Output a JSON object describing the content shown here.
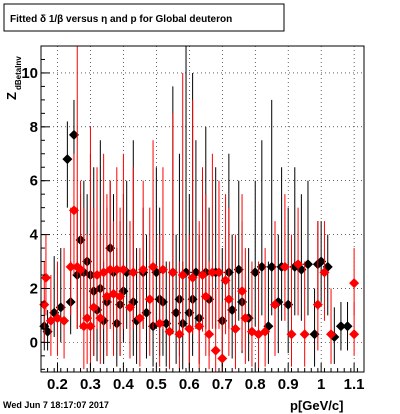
{
  "page": {
    "timestamp": "Wed Jun  7 18:17:07 2017"
  },
  "chart_data": {
    "type": "scatter",
    "title": "Fitted δ 1/β versus η and p for Global deuteron",
    "xlabel": "p[GeV/c]",
    "ylabel": "Z",
    "ylabel_sub": "dBetaInv",
    "xlim": [
      0.15,
      1.13
    ],
    "ylim": [
      -1.1,
      11.0
    ],
    "xticks": [
      {
        "value": 0.2,
        "label": "0.2"
      },
      {
        "value": 0.3,
        "label": "0.3"
      },
      {
        "value": 0.4,
        "label": "0.4"
      },
      {
        "value": 0.5,
        "label": "0.5"
      },
      {
        "value": 0.6,
        "label": "0.6"
      },
      {
        "value": 0.7,
        "label": "0.7"
      },
      {
        "value": 0.8,
        "label": "0.8"
      },
      {
        "value": 0.9,
        "label": "0.9"
      },
      {
        "value": 1.0,
        "label": "1"
      },
      {
        "value": 1.1,
        "label": "1.1"
      }
    ],
    "yticks": [
      {
        "value": 0,
        "label": "0"
      },
      {
        "value": 2,
        "label": "2"
      },
      {
        "value": 4,
        "label": "4"
      },
      {
        "value": 6,
        "label": "6"
      },
      {
        "value": 8,
        "label": "8"
      },
      {
        "value": 10,
        "label": "10"
      }
    ],
    "grid": true,
    "colors": {
      "black_series": "#000000",
      "red_series": "#ff0000"
    },
    "series": [
      {
        "color": "#000000",
        "marker": "diamond",
        "points": [
          {
            "x": 0.16,
            "y": 0.6,
            "lo": -0.3,
            "hi": 1.5
          },
          {
            "x": 0.17,
            "y": 0.4,
            "lo": -0.3,
            "hi": 1.2
          },
          {
            "x": 0.19,
            "y": 1.1,
            "lo": 0.2,
            "hi": 3.2
          },
          {
            "x": 0.21,
            "y": 1.3,
            "lo": 0.0,
            "hi": 3.5
          },
          {
            "x": 0.23,
            "y": 6.8,
            "lo": 5.0,
            "hi": 8.2
          },
          {
            "x": 0.24,
            "y": 1.5,
            "lo": 0.3,
            "hi": 3.0
          },
          {
            "x": 0.25,
            "y": 7.7,
            "lo": 6.0,
            "hi": 9.0
          },
          {
            "x": 0.26,
            "y": 2.5,
            "lo": 0.5,
            "hi": 5.0
          },
          {
            "x": 0.27,
            "y": 3.8,
            "lo": 2.0,
            "hi": 5.5
          },
          {
            "x": 0.28,
            "y": 2.6,
            "lo": 0.8,
            "hi": 6.0
          },
          {
            "x": 0.29,
            "y": 3.0,
            "lo": 1.0,
            "hi": 5.5
          },
          {
            "x": 0.3,
            "y": 2.5,
            "lo": 0.5,
            "hi": 7.0
          },
          {
            "x": 0.31,
            "y": 1.9,
            "lo": -0.5,
            "hi": 6.5
          },
          {
            "x": 0.32,
            "y": 1.2,
            "lo": -0.7,
            "hi": 4.5
          },
          {
            "x": 0.33,
            "y": 2.0,
            "lo": 0.0,
            "hi": 7.5
          },
          {
            "x": 0.34,
            "y": 0.8,
            "lo": -0.8,
            "hi": 3.0
          },
          {
            "x": 0.35,
            "y": 1.5,
            "lo": -0.5,
            "hi": 5.0
          },
          {
            "x": 0.36,
            "y": 3.5,
            "lo": 1.5,
            "hi": 6.0
          },
          {
            "x": 0.37,
            "y": 2.6,
            "lo": 0.3,
            "hi": 5.5
          },
          {
            "x": 0.38,
            "y": 0.7,
            "lo": -0.9,
            "hi": 3.5
          },
          {
            "x": 0.39,
            "y": 1.4,
            "lo": -0.5,
            "hi": 4.5
          },
          {
            "x": 0.4,
            "y": 1.9,
            "lo": 0.0,
            "hi": 5.5
          },
          {
            "x": 0.41,
            "y": 2.6,
            "lo": 0.5,
            "hi": 6.0
          },
          {
            "x": 0.43,
            "y": 1.5,
            "lo": -0.5,
            "hi": 7.5
          },
          {
            "x": 0.44,
            "y": 0.8,
            "lo": -0.8,
            "hi": 3.5
          },
          {
            "x": 0.46,
            "y": 2.6,
            "lo": 0.5,
            "hi": 5.0
          },
          {
            "x": 0.47,
            "y": 1.1,
            "lo": -0.6,
            "hi": 4.0
          },
          {
            "x": 0.49,
            "y": 0.6,
            "lo": -0.9,
            "hi": 2.5
          },
          {
            "x": 0.5,
            "y": 2.6,
            "lo": 0.5,
            "hi": 6.5
          },
          {
            "x": 0.51,
            "y": 1.6,
            "lo": -0.5,
            "hi": 5.0
          },
          {
            "x": 0.52,
            "y": 1.5,
            "lo": -0.5,
            "hi": 4.0
          },
          {
            "x": 0.53,
            "y": 0.7,
            "lo": -0.9,
            "hi": 3.0
          },
          {
            "x": 0.55,
            "y": 2.6,
            "lo": 0.3,
            "hi": 9.5
          },
          {
            "x": 0.56,
            "y": 1.1,
            "lo": -0.8,
            "hi": 4.0
          },
          {
            "x": 0.57,
            "y": 1.6,
            "lo": -0.5,
            "hi": 7.0
          },
          {
            "x": 0.58,
            "y": 0.7,
            "lo": -1.0,
            "hi": 3.0
          },
          {
            "x": 0.59,
            "y": 2.6,
            "lo": 0.5,
            "hi": 11.0
          },
          {
            "x": 0.6,
            "y": 1.1,
            "lo": -0.8,
            "hi": 5.5
          },
          {
            "x": 0.61,
            "y": 1.6,
            "lo": -0.5,
            "hi": 10.0
          },
          {
            "x": 0.62,
            "y": 2.6,
            "lo": 0.5,
            "hi": 7.5
          },
          {
            "x": 0.63,
            "y": 0.9,
            "lo": -0.8,
            "hi": 4.0
          },
          {
            "x": 0.65,
            "y": 2.6,
            "lo": 0.5,
            "hi": 8.0
          },
          {
            "x": 0.66,
            "y": 1.6,
            "lo": -0.5,
            "hi": 5.0
          },
          {
            "x": 0.68,
            "y": 2.6,
            "lo": 0.5,
            "hi": 6.5
          },
          {
            "x": 0.7,
            "y": 0.8,
            "lo": -0.9,
            "hi": 3.5
          },
          {
            "x": 0.72,
            "y": 2.6,
            "lo": 0.5,
            "hi": 7.0
          },
          {
            "x": 0.73,
            "y": 1.2,
            "lo": -0.6,
            "hi": 4.0
          },
          {
            "x": 0.75,
            "y": 2.7,
            "lo": 0.8,
            "hi": 6.0
          },
          {
            "x": 0.76,
            "y": 1.5,
            "lo": -0.4,
            "hi": 4.5
          },
          {
            "x": 0.78,
            "y": 0.9,
            "lo": -0.7,
            "hi": 3.5
          },
          {
            "x": 0.8,
            "y": 2.6,
            "lo": 0.6,
            "hi": 6.0
          },
          {
            "x": 0.82,
            "y": 2.8,
            "lo": 1.0,
            "hi": 7.5
          },
          {
            "x": 0.84,
            "y": 0.6,
            "lo": -0.8,
            "hi": 3.0
          },
          {
            "x": 0.85,
            "y": 2.8,
            "lo": 1.0,
            "hi": 9.0
          },
          {
            "x": 0.87,
            "y": 1.5,
            "lo": -0.4,
            "hi": 4.0
          },
          {
            "x": 0.88,
            "y": 2.8,
            "lo": 0.8,
            "hi": 6.5
          },
          {
            "x": 0.9,
            "y": 1.4,
            "lo": -0.4,
            "hi": 5.0
          },
          {
            "x": 0.92,
            "y": 2.8,
            "lo": 1.0,
            "hi": 6.5
          },
          {
            "x": 0.94,
            "y": 2.7,
            "lo": 0.8,
            "hi": 5.5
          },
          {
            "x": 0.96,
            "y": 2.9,
            "lo": 1.0,
            "hi": 6.0
          },
          {
            "x": 0.98,
            "y": 0.3,
            "lo": -0.9,
            "hi": 2.0
          },
          {
            "x": 0.99,
            "y": 2.9,
            "lo": 1.2,
            "hi": 4.5
          },
          {
            "x": 1.0,
            "y": 3.0,
            "lo": 1.5,
            "hi": 4.5
          },
          {
            "x": 1.02,
            "y": 2.8,
            "lo": 1.0,
            "hi": 4.0
          },
          {
            "x": 1.04,
            "y": 0.2,
            "lo": -0.8,
            "hi": 1.3
          },
          {
            "x": 1.06,
            "y": 0.6,
            "lo": -0.3,
            "hi": 1.5
          },
          {
            "x": 1.08,
            "y": 0.6,
            "lo": -0.3,
            "hi": 1.5
          }
        ]
      },
      {
        "color": "#ff0000",
        "marker": "diamond",
        "points": [
          {
            "x": 0.16,
            "y": 1.4,
            "lo": 0.0,
            "hi": 3.0
          },
          {
            "x": 0.165,
            "y": 2.4,
            "lo": 1.0,
            "hi": 4.0
          },
          {
            "x": 0.18,
            "y": 0.8,
            "lo": -0.5,
            "hi": 2.5
          },
          {
            "x": 0.2,
            "y": 0.9,
            "lo": -0.5,
            "hi": 3.0
          },
          {
            "x": 0.22,
            "y": 0.8,
            "lo": -0.6,
            "hi": 3.5
          },
          {
            "x": 0.24,
            "y": 2.8,
            "lo": 1.0,
            "hi": 5.0
          },
          {
            "x": 0.25,
            "y": 4.9,
            "lo": 2.5,
            "hi": 7.0
          },
          {
            "x": 0.26,
            "y": 2.8,
            "lo": 0.5,
            "hi": 11.0
          },
          {
            "x": 0.27,
            "y": 2.7,
            "lo": 0.5,
            "hi": 6.0
          },
          {
            "x": 0.28,
            "y": 0.6,
            "lo": -1.0,
            "hi": 5.0
          },
          {
            "x": 0.29,
            "y": 0.9,
            "lo": -0.8,
            "hi": 4.0
          },
          {
            "x": 0.3,
            "y": 0.6,
            "lo": -1.0,
            "hi": 8.0
          },
          {
            "x": 0.31,
            "y": 1.3,
            "lo": -0.5,
            "hi": 5.0
          },
          {
            "x": 0.32,
            "y": 2.5,
            "lo": 0.5,
            "hi": 6.5
          },
          {
            "x": 0.33,
            "y": 0.9,
            "lo": -0.8,
            "hi": 4.0
          },
          {
            "x": 0.34,
            "y": 2.6,
            "lo": 0.5,
            "hi": 7.0
          },
          {
            "x": 0.35,
            "y": 1.7,
            "lo": -0.5,
            "hi": 5.5
          },
          {
            "x": 0.36,
            "y": 2.7,
            "lo": 0.5,
            "hi": 6.0
          },
          {
            "x": 0.37,
            "y": 1.8,
            "lo": -0.5,
            "hi": 4.5
          },
          {
            "x": 0.38,
            "y": 2.7,
            "lo": 0.5,
            "hi": 6.5
          },
          {
            "x": 0.39,
            "y": 1.7,
            "lo": -0.5,
            "hi": 5.0
          },
          {
            "x": 0.4,
            "y": 2.7,
            "lo": 0.5,
            "hi": 7.0
          },
          {
            "x": 0.42,
            "y": 1.3,
            "lo": -0.6,
            "hi": 4.5
          },
          {
            "x": 0.43,
            "y": 2.6,
            "lo": 0.5,
            "hi": 6.5
          },
          {
            "x": 0.45,
            "y": 0.9,
            "lo": -0.9,
            "hi": 3.5
          },
          {
            "x": 0.46,
            "y": 2.7,
            "lo": 0.5,
            "hi": 6.0
          },
          {
            "x": 0.48,
            "y": 1.6,
            "lo": -0.5,
            "hi": 5.0
          },
          {
            "x": 0.49,
            "y": 2.8,
            "lo": 0.5,
            "hi": 7.5
          },
          {
            "x": 0.51,
            "y": 0.7,
            "lo": -0.9,
            "hi": 4.0
          },
          {
            "x": 0.52,
            "y": 2.7,
            "lo": 0.5,
            "hi": 6.5
          },
          {
            "x": 0.54,
            "y": 0.4,
            "lo": -1.0,
            "hi": 3.0
          },
          {
            "x": 0.55,
            "y": 2.6,
            "lo": 0.5,
            "hi": 8.5
          },
          {
            "x": 0.57,
            "y": 0.3,
            "lo": -1.0,
            "hi": 3.0
          },
          {
            "x": 0.58,
            "y": 2.5,
            "lo": 0.3,
            "hi": 10.0
          },
          {
            "x": 0.6,
            "y": 0.5,
            "lo": -1.0,
            "hi": 4.0
          },
          {
            "x": 0.61,
            "y": 2.4,
            "lo": 0.3,
            "hi": 9.0
          },
          {
            "x": 0.63,
            "y": 0.6,
            "lo": -1.0,
            "hi": 4.5
          },
          {
            "x": 0.64,
            "y": 2.5,
            "lo": 0.4,
            "hi": 6.5
          },
          {
            "x": 0.65,
            "y": 1.7,
            "lo": -0.5,
            "hi": 5.5
          },
          {
            "x": 0.66,
            "y": 0.3,
            "lo": -1.0,
            "hi": 3.0
          },
          {
            "x": 0.67,
            "y": 2.6,
            "lo": 0.5,
            "hi": 7.0
          },
          {
            "x": 0.68,
            "y": -0.3,
            "lo": -1.1,
            "hi": 2.0
          },
          {
            "x": 0.69,
            "y": 2.6,
            "lo": 0.5,
            "hi": 6.0
          },
          {
            "x": 0.7,
            "y": -0.6,
            "lo": -1.1,
            "hi": 1.5
          },
          {
            "x": 0.71,
            "y": 2.3,
            "lo": 0.3,
            "hi": 5.5
          },
          {
            "x": 0.72,
            "y": 1.6,
            "lo": -0.5,
            "hi": 5.0
          },
          {
            "x": 0.74,
            "y": 0.5,
            "lo": -1.0,
            "hi": 4.0
          },
          {
            "x": 0.76,
            "y": 1.9,
            "lo": -0.3,
            "hi": 5.5
          },
          {
            "x": 0.77,
            "y": 0.9,
            "lo": -0.8,
            "hi": 3.5
          },
          {
            "x": 0.79,
            "y": 0.4,
            "lo": -0.9,
            "hi": 3.0
          },
          {
            "x": 0.81,
            "y": 0.3,
            "lo": -1.0,
            "hi": 3.0
          },
          {
            "x": 0.83,
            "y": 0.4,
            "lo": -0.9,
            "hi": 3.5
          },
          {
            "x": 0.86,
            "y": 1.4,
            "lo": -0.5,
            "hi": 4.5
          },
          {
            "x": 0.89,
            "y": 2.8,
            "lo": 0.8,
            "hi": 5.5
          },
          {
            "x": 0.91,
            "y": 0.3,
            "lo": -0.9,
            "hi": 4.0
          },
          {
            "x": 0.93,
            "y": 2.9,
            "lo": 1.0,
            "hi": 5.0
          },
          {
            "x": 0.95,
            "y": 0.3,
            "lo": -0.9,
            "hi": 3.0
          },
          {
            "x": 0.99,
            "y": 1.4,
            "lo": -0.3,
            "hi": 4.5
          },
          {
            "x": 1.01,
            "y": 2.6,
            "lo": 0.8,
            "hi": 4.5
          },
          {
            "x": 1.03,
            "y": 0.3,
            "lo": -0.8,
            "hi": 2.0
          },
          {
            "x": 1.1,
            "y": 2.2,
            "lo": 1.0,
            "hi": 3.5
          },
          {
            "x": 1.1,
            "y": 0.3,
            "lo": -0.5,
            "hi": 1.5
          }
        ]
      }
    ]
  }
}
